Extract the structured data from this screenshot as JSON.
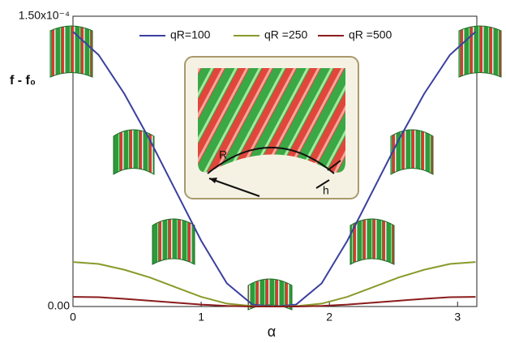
{
  "chart_data": {
    "type": "line",
    "xlabel": "α",
    "ylabel": "f - f₀",
    "x": [
      0,
      0.2,
      0.4,
      0.6,
      0.8,
      1.0,
      1.2,
      1.4,
      1.57,
      1.74,
      1.94,
      2.14,
      2.34,
      2.54,
      2.74,
      2.94,
      3.14
    ],
    "series": [
      {
        "name": "qR=100",
        "color": "#3b3f9e",
        "values": [
          0.000142,
          0.00013,
          0.00011,
          8.6e-05,
          6e-05,
          3.4e-05,
          1.2e-05,
          1e-06,
          0,
          1e-06,
          1.2e-05,
          3.4e-05,
          6e-05,
          8.6e-05,
          0.00011,
          0.00013,
          0.000142
        ]
      },
      {
        "name": "qR =250",
        "color": "#8a9a2a",
        "values": [
          2.3e-05,
          2.2e-05,
          1.9e-05,
          1.5e-05,
          1e-05,
          5e-06,
          1.5e-06,
          2e-07,
          0,
          2e-07,
          1.5e-06,
          5e-06,
          1e-05,
          1.5e-05,
          1.9e-05,
          2.2e-05,
          2.3e-05
        ]
      },
      {
        "name": "qR =500",
        "color": "#8b1c1c",
        "values": [
          5e-06,
          4.8e-06,
          4e-06,
          3e-06,
          2e-06,
          1e-06,
          3e-07,
          0,
          0,
          0,
          3e-07,
          1e-06,
          2e-06,
          3e-06,
          4e-06,
          4.8e-06,
          5e-06
        ]
      }
    ],
    "xlim": [
      0,
      3.15
    ],
    "ylim": [
      0,
      0.00015
    ],
    "xticks": [
      0,
      1,
      2,
      3
    ],
    "yticks": [
      {
        "value": 0,
        "label": "0.00"
      },
      {
        "value": 0.00015,
        "label": "1.50x10⁻⁴"
      }
    ],
    "annotations": [
      "R",
      "h"
    ]
  }
}
